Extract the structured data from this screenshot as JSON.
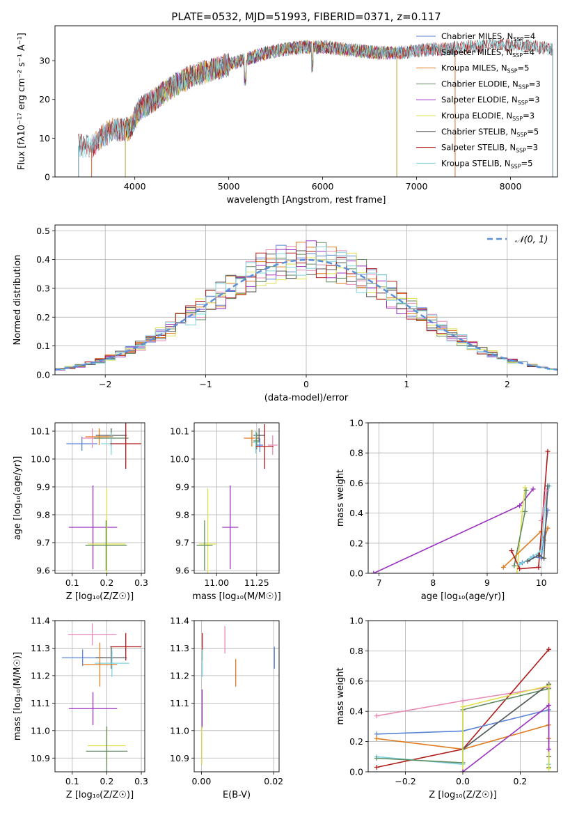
{
  "figure_title": "PLATE=0532, MJD=51993, FIBERID=0371, z=0.117",
  "chart_data": [
    {
      "id": "spectrum",
      "type": "line",
      "title": "PLATE=0532, MJD=51993, FIBERID=0371, z=0.117",
      "xlabel": "wavelength [Angstrom, rest frame]",
      "ylabel": "Flux [fλ10⁻¹⁷ erg cm⁻² s⁻¹ A⁻¹]",
      "xlim": [
        3150,
        8500
      ],
      "ylim": [
        0,
        39
      ],
      "xticks": [
        4000,
        5000,
        6000,
        7000,
        8000
      ],
      "yticks": [
        0,
        10,
        20,
        30
      ],
      "grid": false,
      "legend_position": "top-right",
      "continuum": {
        "x": [
          3400,
          3550,
          3650,
          3750,
          3850,
          3950,
          4050,
          4150,
          4300,
          4450,
          4600,
          4800,
          5000,
          5200,
          5400,
          5600,
          5800,
          6000,
          6200,
          6400,
          6600,
          6800,
          7000,
          7200,
          7300,
          7500,
          7700,
          8000,
          8300,
          8450
        ],
        "y": [
          8,
          8,
          10.5,
          12,
          12,
          12.5,
          17.5,
          19,
          21.5,
          24,
          26,
          27.5,
          29,
          30.5,
          32,
          33,
          33.5,
          33.5,
          33,
          32.5,
          32,
          32,
          32.5,
          33,
          33,
          33.5,
          34,
          34,
          33.5,
          33
        ]
      },
      "series": [
        {
          "name": "Chabrier MILES, N_SSP=4",
          "label": "Chabrier MILES, N",
          "sub": "SSP",
          "eq": "=4",
          "color": "#5b84d6",
          "xmin": 3540,
          "xmax": 7410
        },
        {
          "name": "Salpeter MILES, N_SSP=4",
          "label": "Salpeter MILES, N",
          "sub": "SSP",
          "eq": "=4",
          "color": "#e88ab7",
          "xmin": 3540,
          "xmax": 7410
        },
        {
          "name": "Kroupa MILES, N_SSP=5",
          "label": "Kroupa MILES, N",
          "sub": "SSP",
          "eq": "=5",
          "color": "#e07b1f",
          "xmin": 3540,
          "xmax": 7410
        },
        {
          "name": "Chabrier ELODIE, N_SSP=3",
          "label": "Chabrier ELODIE, N",
          "sub": "SSP",
          "eq": "=3",
          "color": "#5f8a5f",
          "xmin": 3900,
          "xmax": 6790
        },
        {
          "name": "Salpeter ELODIE, N_SSP=3",
          "label": "Salpeter ELODIE, N",
          "sub": "SSP",
          "eq": "=3",
          "color": "#9b30c0",
          "xmin": 3900,
          "xmax": 6790
        },
        {
          "name": "Kroupa ELODIE, N_SSP=3",
          "label": "Kroupa ELODIE, N",
          "sub": "SSP",
          "eq": "=3",
          "color": "#dde04e",
          "xmin": 3900,
          "xmax": 6790
        },
        {
          "name": "Chabrier STELIB, N_SSP=5",
          "label": "Chabrier STELIB, N",
          "sub": "SSP",
          "eq": "=5",
          "color": "#555555",
          "xmin": 3400,
          "xmax": 8450
        },
        {
          "name": "Salpeter STELIB, N_SSP=3",
          "label": "Salpeter STELIB, N",
          "sub": "SSP",
          "eq": "=3",
          "color": "#b01a1a",
          "xmin": 3400,
          "xmax": 8450
        },
        {
          "name": "Kroupa STELIB, N_SSP=5",
          "label": "Kroupa STELIB, N",
          "sub": "SSP",
          "eq": "=5",
          "color": "#7fd3df",
          "xmin": 3400,
          "xmax": 8450
        }
      ]
    },
    {
      "id": "residuals",
      "type": "line",
      "xlabel": "(data-model)/error",
      "ylabel": "Normed distribution",
      "xlim": [
        -2.5,
        2.5
      ],
      "ylim": [
        0,
        0.52
      ],
      "xticks": [
        -2,
        -1,
        0,
        1,
        2
      ],
      "yticks": [
        0.0,
        0.1,
        0.2,
        0.3,
        0.4,
        0.5
      ],
      "grid": true,
      "legend_position": "top-right",
      "normal_curve": {
        "name": "N(0,1)",
        "label": "𝒩(0, 1)",
        "color": "#5b8fd8",
        "mean": 0,
        "sigma": 1
      },
      "bin_width": 0.1,
      "series_colors": [
        "#5b84d6",
        "#e88ab7",
        "#e07b1f",
        "#5f8a5f",
        "#9b30c0",
        "#dde04e",
        "#555555",
        "#b01a1a",
        "#7fd3df"
      ]
    },
    {
      "id": "age_vs_Z",
      "type": "scatter",
      "xlabel": "Z [log₁₀(Z/Z☉)]",
      "ylabel": "age  [log₁₀(age/yr)]",
      "xlim": [
        0.05,
        0.31
      ],
      "ylim": [
        9.59,
        10.13
      ],
      "xticks": [
        0.1,
        0.2,
        0.3
      ],
      "yticks": [
        9.6,
        9.7,
        9.8,
        9.9,
        10.0,
        10.1
      ],
      "grid": true,
      "points": [
        {
          "color": "#5b84d6",
          "x": 0.128,
          "xerr": 0.045,
          "y": 10.055,
          "yerr": 0.025
        },
        {
          "color": "#e88ab7",
          "x": 0.158,
          "xerr": 0.03,
          "y": 10.075,
          "yerr": 0.035
        },
        {
          "color": "#e07b1f",
          "x": 0.178,
          "xerr": 0.04,
          "y": 10.08,
          "yerr": 0.03
        },
        {
          "color": "#555555",
          "x": 0.213,
          "xerr": 0.045,
          "y": 10.085,
          "yerr": 0.025
        },
        {
          "color": "#5f8a5f",
          "x": 0.213,
          "xerr": 0.05,
          "y": 10.075,
          "yerr": 0.03
        },
        {
          "color": "#7fd3df",
          "x": 0.213,
          "xerr": 0.03,
          "y": 10.055,
          "yerr": 0.04
        },
        {
          "color": "#b01a1a",
          "x": 0.255,
          "xerr": 0.045,
          "y": 10.055,
          "yerr": 0.09
        },
        {
          "color": "#9b30c0",
          "x": 0.16,
          "xerr": 0.07,
          "y": 9.755,
          "yerr": 0.15
        },
        {
          "color": "#dde04e",
          "x": 0.2,
          "xerr": 0.055,
          "y": 9.695,
          "yerr": 0.2
        },
        {
          "color": "#5f8a5f",
          "x": 0.198,
          "xerr": 0.06,
          "y": 9.69,
          "yerr": 0.09
        }
      ]
    },
    {
      "id": "age_vs_mass",
      "type": "scatter",
      "xlabel": "mass [log₁₀(M/M☉)]",
      "ylabel": "",
      "xlim": [
        10.86,
        11.39
      ],
      "ylim": [
        9.59,
        10.13
      ],
      "xticks": [
        11.0,
        11.25
      ],
      "yticks": [
        9.6,
        9.7,
        9.8,
        9.9,
        10.0,
        10.1
      ],
      "grid": true,
      "points": [
        {
          "color": "#e07b1f",
          "x": 11.22,
          "xerr": 0.05,
          "y": 10.075,
          "yerr": 0.03
        },
        {
          "color": "#555555",
          "x": 11.265,
          "xerr": 0.035,
          "y": 10.085,
          "yerr": 0.025
        },
        {
          "color": "#7fd3df",
          "x": 11.245,
          "xerr": 0.02,
          "y": 10.06,
          "yerr": 0.04
        },
        {
          "color": "#5f8a5f",
          "x": 11.25,
          "xerr": 0.02,
          "y": 10.065,
          "yerr": 0.03
        },
        {
          "color": "#5b84d6",
          "x": 11.27,
          "xerr": 0.02,
          "y": 10.05,
          "yerr": 0.025
        },
        {
          "color": "#e88ab7",
          "x": 11.35,
          "xerr": 0.03,
          "y": 10.05,
          "yerr": 0.035
        },
        {
          "color": "#b01a1a",
          "x": 11.3,
          "xerr": 0.055,
          "y": 10.045,
          "yerr": 0.08
        },
        {
          "color": "#9b30c0",
          "x": 11.085,
          "xerr": 0.05,
          "y": 9.755,
          "yerr": 0.15
        },
        {
          "color": "#dde04e",
          "x": 10.945,
          "xerr": 0.055,
          "y": 9.695,
          "yerr": 0.2
        },
        {
          "color": "#5f8a5f",
          "x": 10.925,
          "xerr": 0.05,
          "y": 9.69,
          "yerr": 0.09
        }
      ]
    },
    {
      "id": "weight_vs_age",
      "type": "line",
      "xlabel": "age  [log₁₀(age/yr)]",
      "ylabel": "mass weight",
      "xlim": [
        6.8,
        10.3
      ],
      "ylim": [
        0,
        1.0
      ],
      "xticks": [
        7,
        8,
        9,
        10
      ],
      "yticks": [
        0.0,
        0.2,
        0.4,
        0.6,
        0.8,
        1.0
      ],
      "grid": true,
      "series": [
        {
          "color": "#9b30c0",
          "x": [
            6.9,
            9.6,
            9.85
          ],
          "y": [
            0.0,
            0.45,
            0.56
          ]
        },
        {
          "color": "#dde04e",
          "x": [
            9.55,
            9.65,
            9.7
          ],
          "y": [
            0.0,
            0.41,
            0.57
          ]
        },
        {
          "color": "#5f8a5f",
          "x": [
            9.5,
            9.7,
            9.72
          ],
          "y": [
            0.05,
            0.41,
            0.55
          ]
        },
        {
          "color": "#e07b1f",
          "x": [
            9.3,
            10.0,
            10.05,
            10.12
          ],
          "y": [
            0.04,
            0.28,
            0.22,
            0.3
          ]
        },
        {
          "color": "#b01a1a",
          "x": [
            9.45,
            9.6,
            9.95,
            10.12
          ],
          "y": [
            0.15,
            0.03,
            0.04,
            0.81
          ]
        },
        {
          "color": "#5b84d6",
          "x": [
            9.65,
            9.85,
            10.0,
            10.12
          ],
          "y": [
            0.07,
            0.11,
            0.1,
            0.42
          ]
        },
        {
          "color": "#7fd3df",
          "x": [
            9.6,
            9.8,
            10.0,
            10.06,
            10.15
          ],
          "y": [
            0.06,
            0.1,
            0.15,
            0.42,
            0.58
          ]
        },
        {
          "color": "#555555",
          "x": [
            9.75,
            9.95,
            10.05,
            10.12
          ],
          "y": [
            0.08,
            0.12,
            0.1,
            0.58
          ]
        },
        {
          "color": "#e88ab7",
          "x": [
            10.0,
            10.1
          ],
          "y": [
            0.35,
            0.55
          ]
        }
      ]
    },
    {
      "id": "mass_vs_Z",
      "type": "scatter",
      "xlabel": "Z [log₁₀(Z/Z☉)]",
      "ylabel": "mass [log₁₀(M/M☉)]",
      "xlim": [
        0.05,
        0.31
      ],
      "ylim": [
        10.85,
        11.4
      ],
      "xticks": [
        0.1,
        0.2,
        0.3
      ],
      "yticks": [
        10.9,
        11.0,
        11.1,
        11.2,
        11.3,
        11.4
      ],
      "grid": true,
      "points": [
        {
          "color": "#e88ab7",
          "x": 0.158,
          "xerr": 0.07,
          "y": 11.35,
          "yerr": 0.04
        },
        {
          "color": "#b01a1a",
          "x": 0.255,
          "xerr": 0.045,
          "y": 11.305,
          "yerr": 0.05
        },
        {
          "color": "#5b84d6",
          "x": 0.13,
          "xerr": 0.06,
          "y": 11.265,
          "yerr": 0.03
        },
        {
          "color": "#555555",
          "x": 0.213,
          "xerr": 0.045,
          "y": 11.265,
          "yerr": 0.04
        },
        {
          "color": "#7fd3df",
          "x": 0.215,
          "xerr": 0.05,
          "y": 11.245,
          "yerr": 0.05
        },
        {
          "color": "#e07b1f",
          "x": 0.18,
          "xerr": 0.05,
          "y": 11.24,
          "yerr": 0.08
        },
        {
          "color": "#9b30c0",
          "x": 0.16,
          "xerr": 0.07,
          "y": 11.08,
          "yerr": 0.06
        },
        {
          "color": "#dde04e",
          "x": 0.2,
          "xerr": 0.055,
          "y": 10.945,
          "yerr": 0.07
        },
        {
          "color": "#5f8a5f",
          "x": 0.2,
          "xerr": 0.06,
          "y": 10.925,
          "yerr": 0.09
        }
      ]
    },
    {
      "id": "mass_vs_ebv",
      "type": "scatter",
      "xlabel": "E(B-V)",
      "ylabel": "",
      "xlim": [
        -0.002,
        0.0215
      ],
      "ylim": [
        10.85,
        11.4
      ],
      "xticks": [
        0.0,
        0.02
      ],
      "yticks": [
        10.9,
        11.0,
        11.1,
        11.2,
        11.3,
        11.4
      ],
      "grid": true,
      "points": [
        {
          "color": "#e88ab7",
          "x": 0.0065,
          "xerr": 0,
          "y": 11.33,
          "yerr": 0.05
        },
        {
          "color": "#e07b1f",
          "x": 0.0095,
          "xerr": 0,
          "y": 11.21,
          "yerr": 0.05
        },
        {
          "color": "#5b84d6",
          "x": 0.0202,
          "xerr": 0,
          "y": 11.265,
          "yerr": 0.04
        },
        {
          "color": "#b01a1a",
          "x": 0.0003,
          "xerr": 0,
          "y": 11.305,
          "yerr": 0.05
        },
        {
          "color": "#7fd3df",
          "x": 0.0003,
          "xerr": 0,
          "y": 11.245,
          "yerr": 0.05
        },
        {
          "color": "#9b30c0",
          "x": 0.0002,
          "xerr": 0,
          "y": 11.08,
          "yerr": 0.07
        },
        {
          "color": "#dde04e",
          "x": 0.0001,
          "xerr": 0,
          "y": 10.945,
          "yerr": 0.07
        }
      ]
    },
    {
      "id": "weight_vs_Z",
      "type": "line",
      "xlabel": "Z [log₁₀(Z/Z☉)]",
      "ylabel": "mass weight",
      "xlim": [
        -0.33,
        0.33
      ],
      "ylim": [
        0,
        1.0
      ],
      "xticks": [
        -0.2,
        0.0,
        0.2
      ],
      "yticks": [
        0.0,
        0.2,
        0.4,
        0.6,
        0.8,
        1.0
      ],
      "grid": true,
      "series": [
        {
          "color": "#e88ab7",
          "x": [
            -0.3,
            0.0,
            0.3
          ],
          "y": [
            0.37,
            0.47,
            0.56
          ]
        },
        {
          "color": "#b01a1a",
          "x": [
            -0.3,
            0.0,
            0.3
          ],
          "y": [
            0.03,
            0.15,
            0.81
          ]
        },
        {
          "color": "#5b84d6",
          "x": [
            -0.3,
            0.0,
            0.3
          ],
          "y": [
            0.25,
            0.27,
            0.41
          ]
        },
        {
          "color": "#e07b1f",
          "x": [
            -0.3,
            0.0,
            0.3,
            0.3
          ],
          "y": [
            0.22,
            0.15,
            0.31,
            0.22
          ]
        },
        {
          "color": "#7fd3df",
          "x": [
            -0.3,
            0.0,
            0.0,
            0.3,
            0.3
          ],
          "y": [
            0.1,
            0.05,
            0.15,
            0.58,
            0.05
          ]
        },
        {
          "color": "#5f8a5f",
          "x": [
            -0.3,
            0.0,
            0.0,
            0.3,
            0.3
          ],
          "y": [
            0.09,
            0.06,
            0.41,
            0.55,
            0.03
          ]
        },
        {
          "color": "#555555",
          "x": [
            0.0,
            0.3,
            0.3
          ],
          "y": [
            0.15,
            0.58,
            0.1
          ]
        },
        {
          "color": "#dde04e",
          "x": [
            0.0,
            0.0,
            0.3,
            0.3
          ],
          "y": [
            0.0,
            0.43,
            0.57,
            0.02
          ]
        },
        {
          "color": "#9b30c0",
          "x": [
            0.0,
            0.3,
            0.3
          ],
          "y": [
            0.0,
            0.44,
            0.15
          ]
        }
      ]
    }
  ]
}
